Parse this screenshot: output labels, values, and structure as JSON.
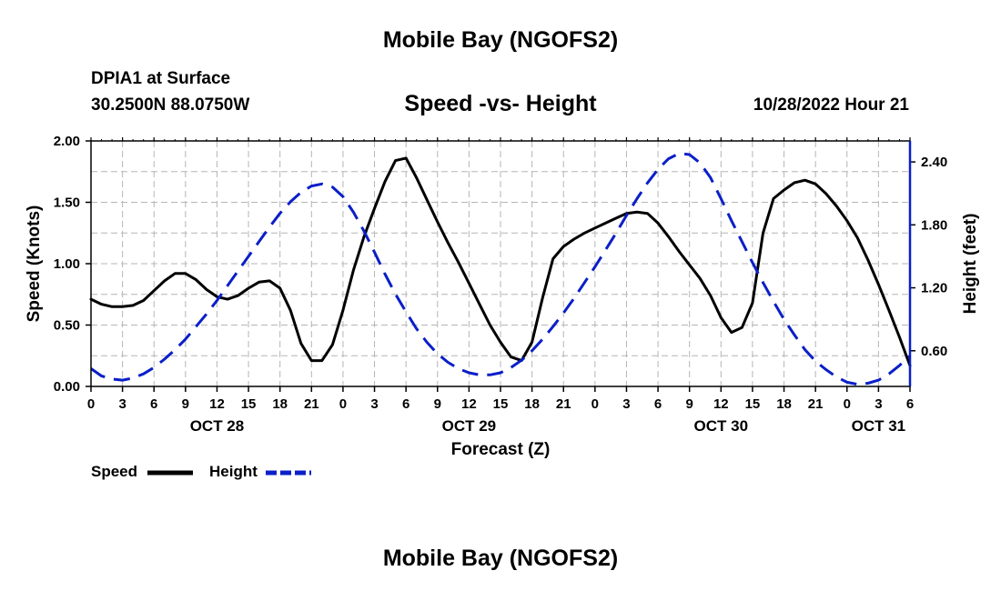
{
  "header": {
    "title": "Mobile Bay (NGOFS2)",
    "station": "DPIA1 at Surface",
    "coords": "30.2500N  88.0750W",
    "subtitle": "Speed -vs- Height",
    "timestamp": "10/28/2022 Hour 21",
    "footer_title": "Mobile Bay (NGOFS2)"
  },
  "legend": {
    "speed": "Speed",
    "height": "Height"
  },
  "chart_data": {
    "type": "line",
    "title": "Speed -vs- Height",
    "xlabel": "Forecast (Z)",
    "ylabel": "Speed (Knots)",
    "y2label": "Height (feet)",
    "x_unit": "hours since Oct 28 00Z",
    "xlim": [
      0,
      78
    ],
    "ylim": [
      0,
      2.0
    ],
    "y2lim": [
      0.26,
      2.6
    ],
    "x_ticks": [
      0,
      3,
      6,
      9,
      12,
      15,
      18,
      21,
      24,
      27,
      30,
      33,
      36,
      39,
      42,
      45,
      48,
      51,
      54,
      57,
      60,
      63,
      66,
      69,
      72,
      75,
      78
    ],
    "x_tick_labels": [
      "0",
      "3",
      "6",
      "9",
      "12",
      "15",
      "18",
      "21",
      "0",
      "3",
      "6",
      "9",
      "12",
      "15",
      "18",
      "21",
      "0",
      "3",
      "6",
      "9",
      "12",
      "15",
      "18",
      "21",
      "0",
      "3",
      "6"
    ],
    "date_labels": [
      {
        "x": 12,
        "text": "OCT 28"
      },
      {
        "x": 36,
        "text": "OCT 29"
      },
      {
        "x": 60,
        "text": "OCT 30"
      },
      {
        "x": 75,
        "text": "OCT 31"
      }
    ],
    "y_ticks": [
      0,
      0.5,
      1.0,
      1.5,
      2.0
    ],
    "y_tick_labels": [
      "0.00",
      "0.50",
      "1.00",
      "1.50",
      "2.00"
    ],
    "y2_ticks": [
      0.6,
      1.2,
      1.8,
      2.4
    ],
    "y2_tick_labels": [
      "0.60",
      "1.20",
      "1.80",
      "2.40"
    ],
    "grid": true,
    "series": [
      {
        "name": "Speed",
        "axis": "left",
        "color": "#000000",
        "dash": "solid",
        "x": [
          0,
          1,
          2,
          3,
          4,
          5,
          6,
          7,
          8,
          9,
          10,
          11,
          12,
          13,
          14,
          15,
          16,
          17,
          18,
          19,
          20,
          21,
          22,
          23,
          24,
          25,
          26,
          27,
          28,
          29,
          30,
          31,
          32,
          33,
          34,
          35,
          36,
          37,
          38,
          39,
          40,
          41,
          42,
          43,
          44,
          45,
          46,
          47,
          48,
          49,
          50,
          51,
          52,
          53,
          54,
          55,
          56,
          57,
          58,
          59,
          60,
          61,
          62,
          63,
          64,
          65,
          66,
          67,
          68,
          69,
          70,
          71,
          72,
          73,
          74,
          75,
          76,
          77,
          78
        ],
        "values": [
          0.71,
          0.67,
          0.65,
          0.65,
          0.66,
          0.7,
          0.78,
          0.86,
          0.92,
          0.92,
          0.87,
          0.79,
          0.73,
          0.71,
          0.74,
          0.8,
          0.85,
          0.86,
          0.8,
          0.62,
          0.35,
          0.21,
          0.21,
          0.34,
          0.62,
          0.95,
          1.22,
          1.45,
          1.67,
          1.84,
          1.86,
          1.7,
          1.52,
          1.34,
          1.17,
          1.01,
          0.84,
          0.67,
          0.5,
          0.36,
          0.24,
          0.21,
          0.36,
          0.72,
          1.04,
          1.14,
          1.2,
          1.25,
          1.29,
          1.33,
          1.37,
          1.41,
          1.42,
          1.41,
          1.33,
          1.22,
          1.1,
          0.99,
          0.88,
          0.74,
          0.56,
          0.44,
          0.48,
          0.68,
          1.25,
          1.53,
          1.6,
          1.66,
          1.68,
          1.65,
          1.57,
          1.47,
          1.35,
          1.21,
          1.03,
          0.83,
          0.62,
          0.4,
          0.17
        ]
      },
      {
        "name": "Height",
        "axis": "right",
        "color": "#0a1fc8",
        "dash": "dashed",
        "x": [
          0,
          1,
          2,
          3,
          4,
          5,
          6,
          7,
          8,
          9,
          10,
          11,
          12,
          13,
          14,
          15,
          16,
          17,
          18,
          19,
          20,
          21,
          22,
          23,
          24,
          25,
          26,
          27,
          28,
          29,
          30,
          31,
          32,
          33,
          34,
          35,
          36,
          37,
          38,
          39,
          40,
          41,
          42,
          43,
          44,
          45,
          46,
          47,
          48,
          49,
          50,
          51,
          52,
          53,
          54,
          55,
          56,
          57,
          58,
          59,
          60,
          61,
          62,
          63,
          64,
          65,
          66,
          67,
          68,
          69,
          70,
          71,
          72,
          73,
          74,
          75,
          76,
          77,
          78
        ],
        "values": [
          0.43,
          0.36,
          0.33,
          0.32,
          0.34,
          0.38,
          0.44,
          0.52,
          0.61,
          0.71,
          0.83,
          0.95,
          1.08,
          1.22,
          1.36,
          1.5,
          1.64,
          1.78,
          1.91,
          2.02,
          2.11,
          2.17,
          2.19,
          2.16,
          2.07,
          1.92,
          1.74,
          1.54,
          1.33,
          1.14,
          0.97,
          0.81,
          0.68,
          0.57,
          0.49,
          0.43,
          0.39,
          0.37,
          0.37,
          0.39,
          0.44,
          0.51,
          0.6,
          0.71,
          0.83,
          0.96,
          1.1,
          1.25,
          1.4,
          1.56,
          1.72,
          1.89,
          2.05,
          2.2,
          2.33,
          2.43,
          2.48,
          2.47,
          2.39,
          2.25,
          2.05,
          1.84,
          1.64,
          1.44,
          1.25,
          1.07,
          0.9,
          0.75,
          0.61,
          0.5,
          0.42,
          0.35,
          0.3,
          0.28,
          0.29,
          0.32,
          0.38,
          0.46,
          0.55
        ]
      }
    ]
  }
}
